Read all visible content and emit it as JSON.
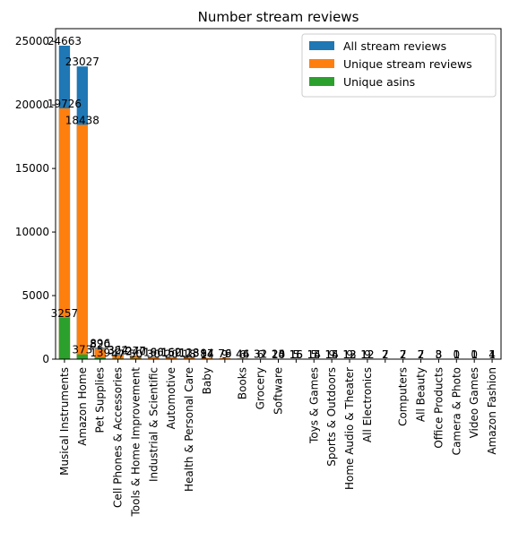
{
  "chart_data": {
    "type": "bar",
    "title": "Number stream reviews",
    "xlabel": "",
    "ylabel": "",
    "ylim": [
      0,
      26000
    ],
    "yticks": [
      0,
      5000,
      10000,
      15000,
      20000,
      25000
    ],
    "legend_position": "top-right",
    "grid": false,
    "categories": [
      "Musical Instruments",
      "Amazon Home",
      "Pet Supplies",
      "Cell Phones & Accessories",
      "Tools & Home Improvement",
      "Industrial & Scientific",
      "Automotive",
      "Health & Personal Care",
      "Baby",
      "",
      "Books",
      "Grocery",
      "Software",
      "",
      "Toys & Games",
      "Sports & Outdoors",
      "Home Audio & Theater",
      "All Electronics",
      "",
      "Computers",
      "All Beauty",
      "Office Products",
      "Camera & Photo",
      "Video Games",
      "Amazon Fashion"
    ],
    "series": [
      {
        "name": "All stream reviews",
        "color": "#1f77b4",
        "values": [
          24663,
          23027,
          896,
          364,
          277,
          190,
          162,
          128,
          94,
          79,
          46,
          32,
          24,
          16,
          15,
          15,
          13,
          12,
          7,
          7,
          7,
          3,
          1,
          1,
          1
        ],
        "labels": [
          "24663",
          "23027",
          "896",
          "364",
          "277",
          "190",
          "162",
          "128",
          "94",
          "79",
          "46",
          "32",
          "24",
          "16",
          "15",
          "15",
          "13",
          "12",
          "7",
          "7",
          "7",
          "3",
          "1",
          "1",
          "1"
        ]
      },
      {
        "name": "Unique stream reviews",
        "color": "#ff7f0e",
        "values": [
          19726,
          18438,
          820,
          322,
          240,
          166,
          150,
          113,
          87,
          76,
          44,
          31,
          23,
          15,
          14,
          14,
          12,
          12,
          7,
          7,
          7,
          3,
          1,
          1,
          1
        ],
        "labels": [
          "19726",
          "18438",
          "820",
          "322",
          "240",
          "166",
          "150",
          "113",
          "87",
          "76",
          "44",
          "31",
          "23",
          "15",
          "14",
          "14",
          "12",
          "12",
          "7",
          "7",
          "7",
          "3",
          "1",
          "1",
          "1"
        ]
      },
      {
        "name": "Unique asins",
        "color": "#2ca02c",
        "values": [
          3257,
          373,
          139,
          47,
          50,
          30,
          20,
          18,
          14,
          9,
          6,
          6,
          10,
          5,
          5,
          9,
          9,
          9,
          2,
          2,
          2,
          8,
          0,
          0,
          4
        ],
        "labels": [
          "3257",
          "373",
          "139",
          "47",
          "50",
          "30",
          "20",
          "18",
          "14",
          "9",
          "6",
          "6",
          "10",
          "5",
          "5",
          "9",
          "9",
          "9",
          "2",
          "2",
          "2",
          "8",
          "0",
          "0",
          "4"
        ]
      }
    ]
  }
}
